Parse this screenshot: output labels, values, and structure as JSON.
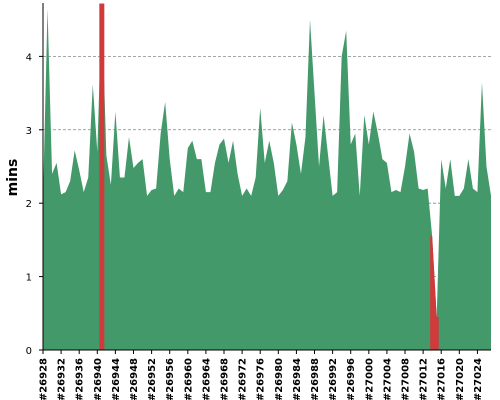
{
  "chart_data": {
    "type": "area",
    "title": "",
    "ylabel": "mins",
    "xlabel": "",
    "ylim": [
      0,
      4.7
    ],
    "yticks": [
      0,
      1,
      2,
      3,
      4
    ],
    "grid": "horizontal-dashed",
    "x_tick_labels": [
      "#26928",
      "#26932",
      "#26936",
      "#26940",
      "#26944",
      "#26948",
      "#26952",
      "#26956",
      "#26960",
      "#26964",
      "#26968",
      "#26972",
      "#26976",
      "#26980",
      "#26984",
      "#26988",
      "#26992",
      "#26996",
      "#27000",
      "#27004",
      "#27008",
      "#27012",
      "#27016",
      "#27020",
      "#27024"
    ],
    "x_start": 26928,
    "x_step": 1,
    "values": [
      2.05,
      4.65,
      2.4,
      2.55,
      2.12,
      2.15,
      2.3,
      2.72,
      2.45,
      2.15,
      2.35,
      3.62,
      2.7,
      4.72,
      2.65,
      2.25,
      3.25,
      2.35,
      2.35,
      2.9,
      2.48,
      2.55,
      2.6,
      2.1,
      2.18,
      2.2,
      2.95,
      3.38,
      2.6,
      2.1,
      2.2,
      2.15,
      2.75,
      2.85,
      2.6,
      2.6,
      2.15,
      2.15,
      2.55,
      2.8,
      2.88,
      2.55,
      2.85,
      2.4,
      2.1,
      2.2,
      2.1,
      2.35,
      3.3,
      2.55,
      2.85,
      2.55,
      2.1,
      2.18,
      2.3,
      3.1,
      2.8,
      2.4,
      2.9,
      4.5,
      3.5,
      2.5,
      3.2,
      2.65,
      2.1,
      2.15,
      4.0,
      4.35,
      2.8,
      2.95,
      2.1,
      3.2,
      2.8,
      3.25,
      2.95,
      2.6,
      2.55,
      2.15,
      2.18,
      2.15,
      2.5,
      2.95,
      2.7,
      2.2,
      2.18,
      2.2,
      1.55,
      0.45,
      2.6,
      2.2,
      2.6,
      2.1,
      2.1,
      2.2,
      2.6,
      2.2,
      2.15,
      3.65,
      2.5,
      2.1
    ],
    "highlighted": [
      {
        "x": 26941,
        "value": 4.72,
        "note": "outlier"
      },
      {
        "x": 27014,
        "value": 1.55,
        "note": "outlier"
      },
      {
        "x": 27015,
        "value": 0.45,
        "note": "outlier"
      }
    ],
    "colors": {
      "fill": "#43996a",
      "highlight": "#d13a3a",
      "grid": "#888888",
      "axis": "#000000"
    }
  }
}
